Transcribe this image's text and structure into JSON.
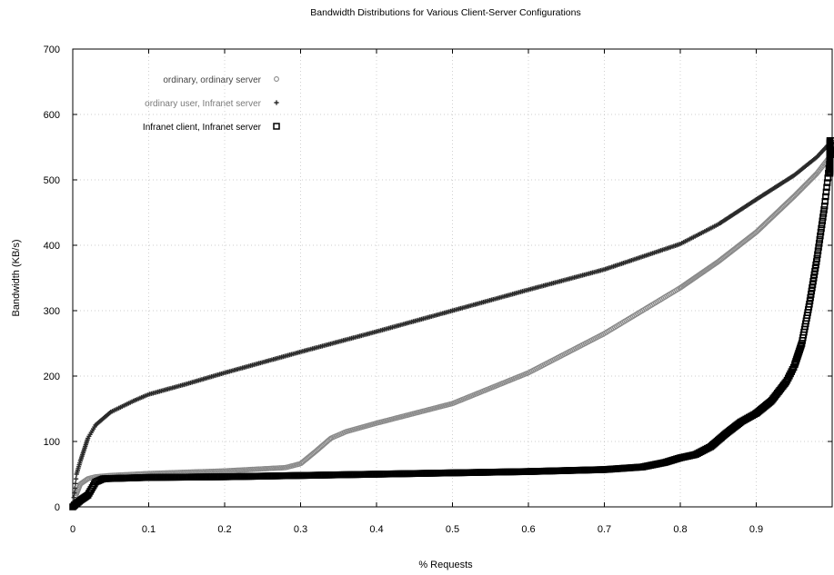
{
  "chart_data": {
    "type": "scatter",
    "title": "Bandwidth Distributions for Various Client-Server Configurations",
    "xlabel": "% Requests",
    "ylabel": "Bandwidth (KB/s)",
    "xlim": [
      0,
      1
    ],
    "ylim": [
      0,
      700
    ],
    "xticks": [
      "0",
      "0.1",
      "0.2",
      "0.3",
      "0.4",
      "0.5",
      "0.6",
      "0.7",
      "0.8",
      "0.9"
    ],
    "yticks": [
      "0",
      "100",
      "200",
      "300",
      "400",
      "500",
      "600",
      "700"
    ],
    "grid": true,
    "legend_position": "top-left",
    "series": [
      {
        "name": "ordinary, ordinary server",
        "marker": "circle",
        "color": "#8a8a8a",
        "x": [
          0,
          0.005,
          0.01,
          0.02,
          0.03,
          0.05,
          0.1,
          0.2,
          0.28,
          0.3,
          0.32,
          0.34,
          0.36,
          0.4,
          0.5,
          0.6,
          0.7,
          0.8,
          0.85,
          0.9,
          0.95,
          0.98,
          1.0
        ],
        "y": [
          0,
          20,
          35,
          43,
          46,
          48,
          51,
          55,
          60,
          66,
          85,
          105,
          115,
          128,
          158,
          205,
          265,
          335,
          375,
          420,
          475,
          510,
          540
        ]
      },
      {
        "name": "ordinary user, Infranet server",
        "marker": "plus",
        "color": "#2a2a2a",
        "x": [
          0,
          0.005,
          0.01,
          0.02,
          0.03,
          0.05,
          0.08,
          0.1,
          0.15,
          0.2,
          0.3,
          0.4,
          0.5,
          0.6,
          0.7,
          0.8,
          0.85,
          0.9,
          0.95,
          0.98,
          1.0
        ],
        "y": [
          0,
          50,
          70,
          105,
          125,
          145,
          162,
          172,
          188,
          205,
          237,
          268,
          300,
          332,
          363,
          402,
          432,
          470,
          507,
          535,
          560
        ]
      },
      {
        "name": "Infranet client, Infranet server",
        "marker": "square",
        "color": "#000000",
        "x": [
          0,
          0.005,
          0.01,
          0.02,
          0.025,
          0.03,
          0.04,
          0.1,
          0.2,
          0.3,
          0.4,
          0.5,
          0.6,
          0.7,
          0.75,
          0.78,
          0.8,
          0.82,
          0.84,
          0.86,
          0.88,
          0.9,
          0.92,
          0.94,
          0.95,
          0.96,
          0.97,
          0.98,
          0.99,
          1.0
        ],
        "y": [
          0,
          5,
          10,
          18,
          28,
          38,
          43,
          45,
          46,
          48,
          50,
          52,
          54,
          57,
          61,
          68,
          75,
          80,
          92,
          112,
          130,
          143,
          162,
          192,
          215,
          250,
          310,
          380,
          460,
          560
        ]
      }
    ]
  }
}
